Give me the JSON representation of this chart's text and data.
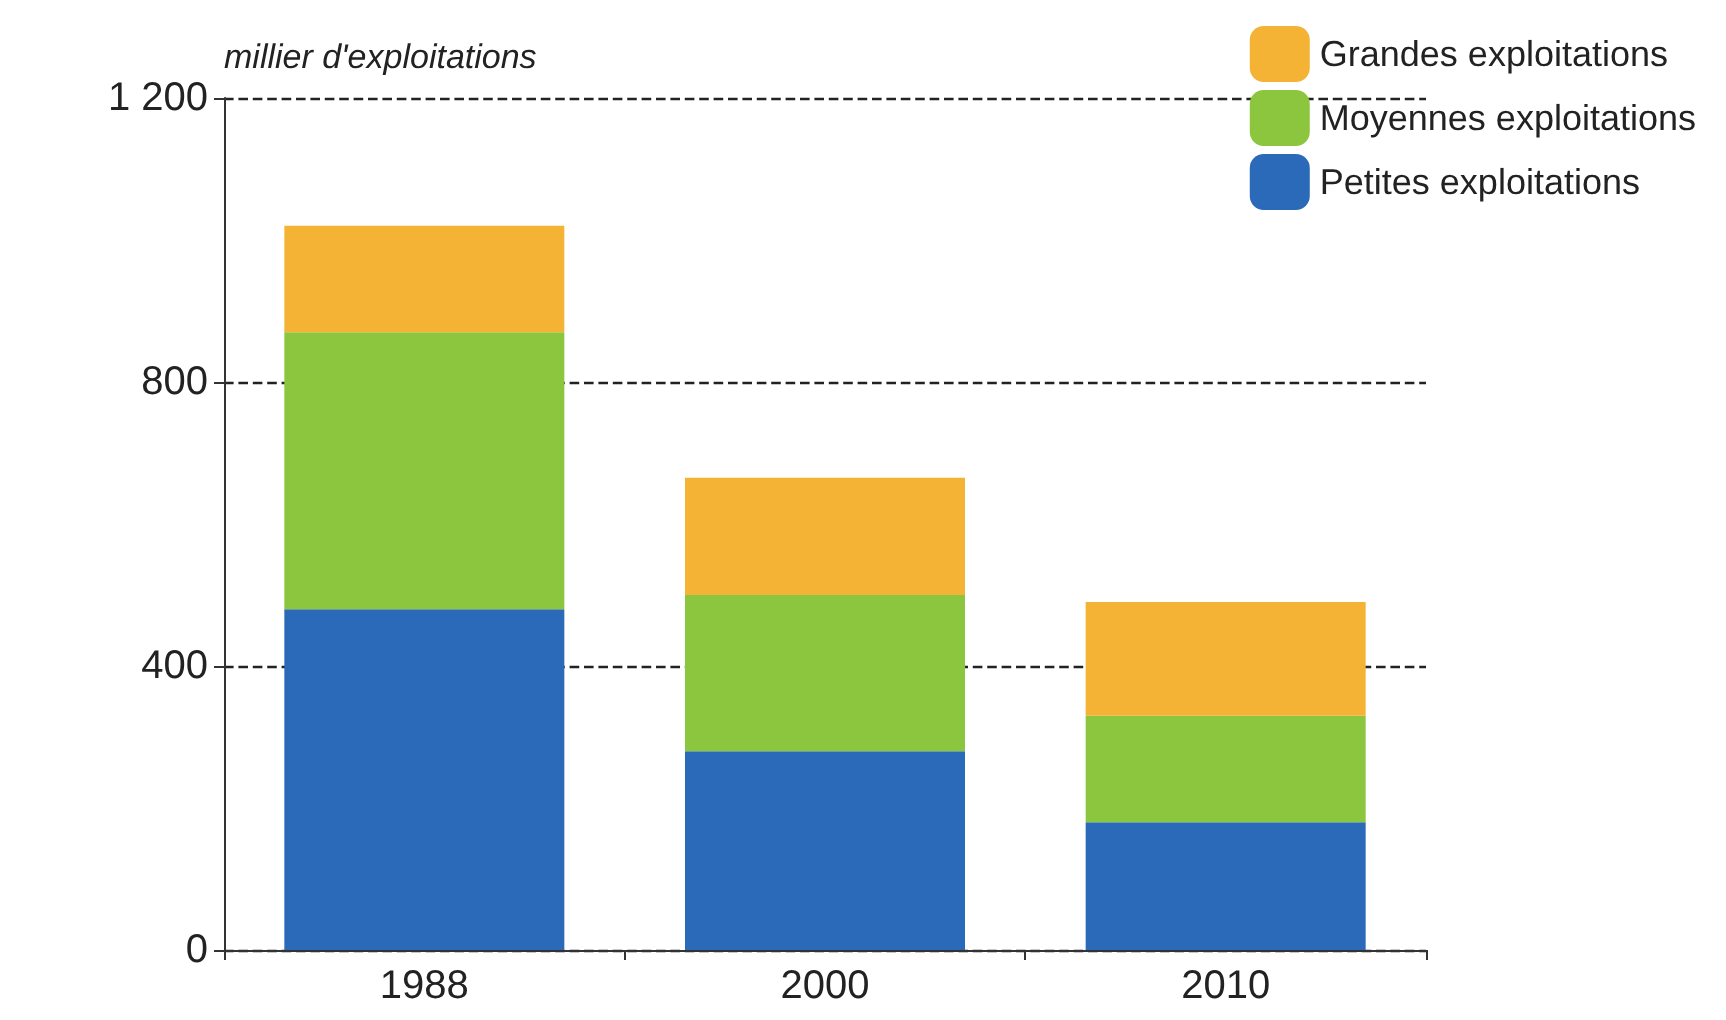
{
  "chart_data": {
    "type": "bar",
    "ylabel": "millier d'exploitations",
    "categories": [
      "1988",
      "2000",
      "2010"
    ],
    "stacked": true,
    "series": [
      {
        "name": "Petites exploitations",
        "color": "#2a6ab8",
        "values": [
          480,
          280,
          180
        ]
      },
      {
        "name": "Moyennes exploitations",
        "color": "#8cc63f",
        "values": [
          390,
          220,
          150
        ]
      },
      {
        "name": "Grandes exploitations",
        "color": "#f5b335",
        "values": [
          150,
          165,
          160
        ]
      }
    ],
    "ylim": [
      0,
      1200
    ],
    "yticks": [
      0,
      400,
      800,
      {
        "value": 1200,
        "label": "1 200"
      }
    ],
    "grid": "y",
    "line_style": "dashed",
    "legend": "top right"
  }
}
